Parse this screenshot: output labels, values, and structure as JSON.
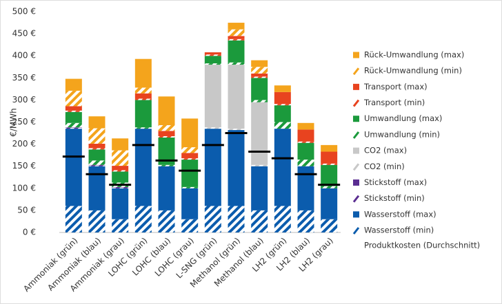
{
  "chart_data": {
    "type": "stacked-bar",
    "y_label": "€/MWh",
    "categories": [
      "Ammoniak (grün)",
      "Ammoniak (blau)",
      "Ammoniak (grau)",
      "LOHC (grün)",
      "LOHC (blau)",
      "LOHC (grau)",
      "L-SNG (grün)",
      "Methanol (grün)",
      "Methanol (blau)",
      "LH2 (grün)",
      "LH2 (blau)",
      "LH2 (grau)"
    ],
    "ylim": [
      0,
      500
    ],
    "yticks": [
      {
        "value": 0,
        "label": "0 €"
      },
      {
        "value": 50,
        "label": "50 €"
      },
      {
        "value": 100,
        "label": "100 €"
      },
      {
        "value": 150,
        "label": "150 €"
      },
      {
        "value": 200,
        "label": "200 €"
      },
      {
        "value": 250,
        "label": "250 €"
      },
      {
        "value": 300,
        "label": "300 €"
      },
      {
        "value": 350,
        "label": "350 €"
      },
      {
        "value": 400,
        "label": "400 €"
      },
      {
        "value": 450,
        "label": "450 €"
      },
      {
        "value": 500,
        "label": "500 €"
      }
    ],
    "grid": false,
    "series": [
      {
        "name": "Wasserstoff (min)",
        "color": "#0b5cad",
        "hatched": true,
        "values": [
          60,
          50,
          30,
          60,
          50,
          30,
          60,
          60,
          50,
          60,
          50,
          30
        ]
      },
      {
        "name": "Wasserstoff (max)",
        "color": "#0b5cad",
        "hatched": false,
        "values": [
          175,
          100,
          70,
          175,
          100,
          70,
          175,
          172,
          100,
          175,
          100,
          70
        ]
      },
      {
        "name": "Stickstoff (min)",
        "color": "#5a2d91",
        "hatched": true,
        "values": [
          2,
          2,
          2,
          0,
          0,
          0,
          0,
          0,
          0,
          0,
          0,
          0
        ]
      },
      {
        "name": "Stickstoff (max)",
        "color": "#5a2d91",
        "hatched": false,
        "values": [
          1,
          1,
          1,
          0,
          0,
          0,
          0,
          0,
          0,
          0,
          0,
          0
        ]
      },
      {
        "name": "CO2 (min)",
        "color": "#c8c8c8",
        "hatched": true,
        "values": [
          0,
          0,
          0,
          0,
          0,
          0,
          3,
          3,
          3,
          0,
          0,
          0
        ]
      },
      {
        "name": "CO2 (max)",
        "color": "#c8c8c8",
        "hatched": false,
        "values": [
          0,
          0,
          0,
          0,
          0,
          0,
          142,
          145,
          142,
          0,
          0,
          0
        ]
      },
      {
        "name": "Umwandlung (min)",
        "color": "#1b9a3c",
        "hatched": true,
        "values": [
          10,
          10,
          10,
          3,
          3,
          3,
          3,
          5,
          5,
          15,
          15,
          5
        ]
      },
      {
        "name": "Umwandlung (max)",
        "color": "#1b9a3c",
        "hatched": false,
        "values": [
          25,
          25,
          25,
          62,
          62,
          62,
          17,
          50,
          50,
          38,
          38,
          48
        ]
      },
      {
        "name": "Transport (min)",
        "color": "#e8431f",
        "hatched": true,
        "values": [
          3,
          3,
          3,
          3,
          3,
          3,
          3,
          3,
          3,
          3,
          3,
          3
        ]
      },
      {
        "name": "Transport (max)",
        "color": "#e8431f",
        "hatched": false,
        "values": [
          10,
          10,
          10,
          12,
          12,
          12,
          5,
          7,
          7,
          27,
          27,
          27
        ]
      },
      {
        "name": "Rück-Umwandlung (min)",
        "color": "#f4a41c",
        "hatched": true,
        "values": [
          35,
          35,
          35,
          13,
          13,
          13,
          0,
          15,
          15,
          0,
          0,
          0
        ]
      },
      {
        "name": "Rück-Umwandlung (max)",
        "color": "#f4a41c",
        "hatched": false,
        "values": [
          27,
          27,
          27,
          65,
          65,
          65,
          0,
          15,
          15,
          15,
          15,
          15
        ]
      }
    ],
    "average": {
      "name": "Produktkosten (Durchschnitt)",
      "color": "#000000",
      "values": [
        172,
        132,
        108,
        198,
        163,
        140,
        198,
        225,
        183,
        168,
        132,
        108
      ]
    }
  }
}
